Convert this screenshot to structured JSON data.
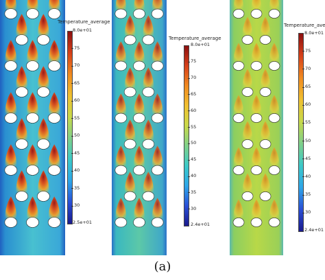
{
  "panels": [
    {
      "colorbar": {
        "title": "Temperature_average",
        "max_label": "8.0e+01",
        "min_label": "2.5e+01",
        "ticks": [
          "75",
          "70",
          "65",
          "60",
          "55",
          "50",
          "45",
          "40",
          "35",
          "30"
        ]
      },
      "style": "hot"
    },
    {
      "colorbar": {
        "title": "Temperature_average",
        "max_label": "8.0e+01",
        "min_label": "2.4e+01",
        "ticks": [
          "75",
          "70",
          "65",
          "60",
          "55",
          "50",
          "45",
          "40",
          "35",
          "30"
        ]
      },
      "style": "medium"
    },
    {
      "colorbar": {
        "title": "Temperature_average",
        "max_label": "8.0e+01",
        "min_label": "2.4e+01",
        "ticks": [
          "75",
          "70",
          "65",
          "60",
          "55",
          "50",
          "45",
          "40",
          "35",
          "30"
        ]
      },
      "style": "mild"
    }
  ],
  "colormap": [
    "#1a1a8c",
    "#2a4fd6",
    "#2ea6e8",
    "#3cc9c8",
    "#7fd08a",
    "#c8d94a",
    "#f0c030",
    "#f08a20",
    "#d6401a",
    "#8c1010"
  ],
  "caption": "(a)"
}
